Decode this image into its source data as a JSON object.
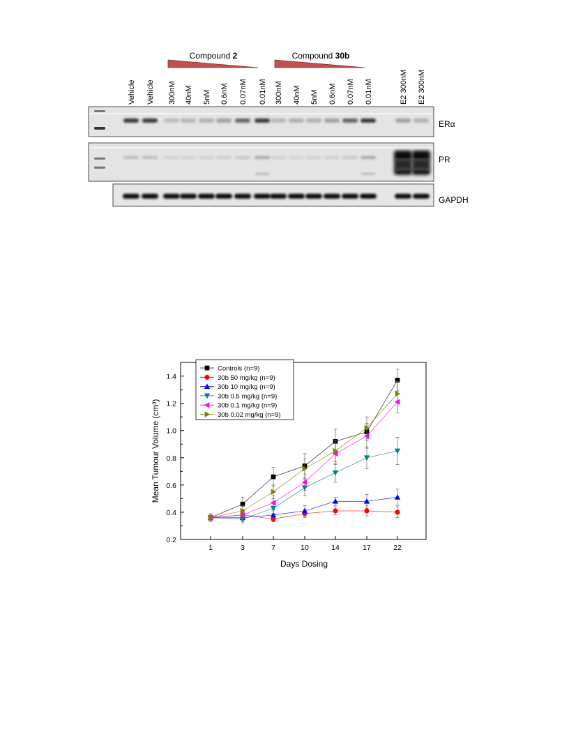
{
  "blot": {
    "compound_groups": [
      {
        "prefix": "Compound ",
        "name": "2"
      },
      {
        "prefix": "Compound ",
        "name": "30b"
      }
    ],
    "lanes": [
      "Vehicle",
      "Vehicle",
      "300nM",
      "40nM",
      "5nM",
      "0.6nM",
      "0.07nM",
      "0.01nM",
      "300nM",
      "40nM",
      "5nM",
      "0.6nM",
      "0.07nM",
      "0.01nM",
      "E2 300nM",
      "E2 300nM"
    ],
    "panels": [
      "ERα",
      "PR",
      "GAPDH"
    ]
  },
  "chart_data": {
    "type": "line",
    "xlabel": "Days Dosing",
    "ylabel": "Mean Tumour Volume (cm³)",
    "categories": [
      "1",
      "3",
      "7",
      "10",
      "14",
      "17",
      "22"
    ],
    "ylim": [
      0.2,
      1.5
    ],
    "yticks": [
      "0.2",
      "0.4",
      "0.6",
      "0.8",
      "1.0",
      "1.2",
      "1.4"
    ],
    "legend_position": "top-left",
    "series": [
      {
        "name": "Controls (n=9)",
        "color": "#000000",
        "marker": "square",
        "values": [
          0.36,
          0.46,
          0.66,
          0.74,
          0.92,
          0.99,
          1.37
        ],
        "errors": [
          0.03,
          0.05,
          0.07,
          0.09,
          0.09,
          0.06,
          0.08
        ]
      },
      {
        "name": "30b 50 mg/kg (n=9)",
        "color": "#ff0000",
        "marker": "circle",
        "values": [
          0.36,
          0.38,
          0.35,
          0.39,
          0.41,
          0.41,
          0.4
        ],
        "errors": [
          0.02,
          0.02,
          0.02,
          0.03,
          0.03,
          0.04,
          0.04
        ]
      },
      {
        "name": "30b 10 mg/kg (n=9)",
        "color": "#0000ff",
        "marker": "triangle-up",
        "values": [
          0.36,
          0.36,
          0.38,
          0.41,
          0.48,
          0.48,
          0.51
        ],
        "errors": [
          0.02,
          0.03,
          0.03,
          0.04,
          0.03,
          0.05,
          0.06
        ]
      },
      {
        "name": "30b 0.5 mg/kg (n=9)",
        "color": "#008080",
        "marker": "triangle-down",
        "values": [
          0.36,
          0.35,
          0.43,
          0.58,
          0.69,
          0.8,
          0.85
        ],
        "errors": [
          0.02,
          0.03,
          0.04,
          0.06,
          0.07,
          0.08,
          0.1
        ]
      },
      {
        "name": "30b 0.1 mg/kg (n=9)",
        "color": "#ff00ff",
        "marker": "triangle-left",
        "values": [
          0.36,
          0.38,
          0.47,
          0.62,
          0.83,
          0.96,
          1.21
        ],
        "errors": [
          0.02,
          0.04,
          0.05,
          0.06,
          0.08,
          0.09,
          0.08
        ]
      },
      {
        "name": "30b 0.02 mg/kg (n=9)",
        "color": "#808000",
        "marker": "triangle-right",
        "values": [
          0.36,
          0.41,
          0.55,
          0.72,
          0.85,
          1.02,
          1.27
        ],
        "errors": [
          0.02,
          0.04,
          0.05,
          0.07,
          0.08,
          0.08,
          0.09
        ]
      }
    ]
  }
}
